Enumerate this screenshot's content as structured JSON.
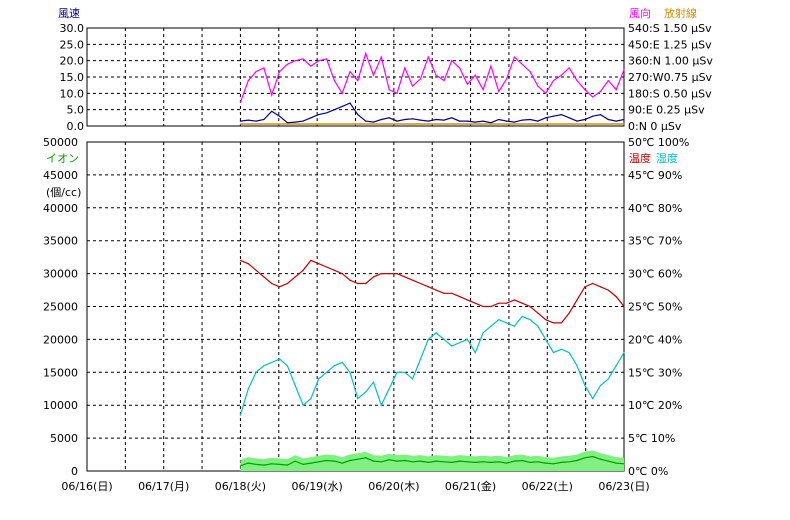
{
  "colors": {
    "wind_speed": "#0000a0",
    "wind_dir": "#ff00ff",
    "radiation": "#d09000",
    "ion": "#00a000",
    "ion_fill": "#80f080",
    "temp": "#c00000",
    "humidity": "#00c0c0",
    "grid": "#000000",
    "label_blue": "#000080"
  },
  "chart_data": [
    {
      "type": "line",
      "title": "",
      "ylabel_left": "風速",
      "ylabel_right": "風向",
      "ylabel_right2": "放射線",
      "ylim": [
        0,
        30
      ],
      "y_ticks": [
        "30.0",
        "25.0",
        "20.0",
        "15.0",
        "10.0",
        "5.0",
        "0.0"
      ],
      "right_ticks": [
        "540:S 1.50 μSv",
        "450:E 1.25 μSv",
        "360:N 1.00 μSv",
        "270:W0.75 μSv",
        "180:S 0.50 μSv",
        "90:E  0.25 μSv",
        "0:N    0 μSv"
      ],
      "data_start_day": 2,
      "series": [
        {
          "name": "風向",
          "unit": "deg",
          "scale_max": 540,
          "values": [
            130,
            250,
            300,
            320,
            170,
            300,
            340,
            360,
            370,
            330,
            360,
            370,
            250,
            180,
            300,
            250,
            400,
            280,
            380,
            200,
            180,
            320,
            220,
            260,
            380,
            280,
            250,
            360,
            320,
            230,
            280,
            200,
            330,
            190,
            260,
            380,
            340,
            300,
            220,
            180,
            250,
            280,
            320,
            250,
            200,
            160,
            190,
            250,
            200,
            310
          ]
        },
        {
          "name": "風速",
          "unit": "m/s",
          "scale_max": 30,
          "values": [
            1.5,
            1.8,
            1.5,
            2.0,
            4.5,
            3.0,
            1.0,
            1.2,
            1.5,
            2.5,
            3.5,
            4.0,
            5.0,
            6.0,
            7.0,
            3.5,
            1.5,
            1.2,
            2.0,
            2.5,
            1.5,
            2.0,
            2.2,
            1.8,
            1.5,
            2.0,
            1.8,
            2.5,
            1.5,
            1.5,
            1.2,
            1.5,
            1.0,
            2.0,
            1.5,
            1.2,
            1.8,
            2.0,
            1.5,
            2.5,
            3.0,
            3.5,
            2.5,
            1.5,
            2.0,
            3.0,
            3.5,
            2.0,
            1.5,
            2.0
          ]
        },
        {
          "name": "放射線",
          "unit": "μSv",
          "scale_max": 1.5,
          "values": [
            0.03,
            0.03,
            0.03,
            0.03,
            0.03,
            0.03,
            0.03,
            0.03,
            0.03,
            0.03
          ]
        }
      ]
    },
    {
      "type": "line",
      "title": "",
      "ylabel_left": "イオン",
      "ylabel_left_unit": "(個/cc)",
      "ylabel_right": "温度",
      "ylabel_right2": "湿度",
      "ylim": [
        0,
        50000
      ],
      "y_ticks": [
        "50000",
        "45000",
        "40000",
        "35000",
        "30000",
        "25000",
        "20000",
        "15000",
        "10000",
        "5000",
        "0"
      ],
      "right_ticks": [
        "50℃ 100%",
        "45℃  90%",
        "40℃  80%",
        "35℃  70%",
        "30℃  60%",
        "25℃  50%",
        "20℃  40%",
        "15℃  30%",
        "10℃  20%",
        "5℃  10%",
        "0℃   0%"
      ],
      "x_ticks": [
        "06/16(日)",
        "06/17(月)",
        "06/18(火)",
        "06/19(水)",
        "06/20(木)",
        "06/21(金)",
        "06/22(土)",
        "06/23(日)"
      ],
      "data_start_day": 2,
      "series": [
        {
          "name": "温度",
          "unit": "℃",
          "scale_max": 50,
          "values": [
            32.0,
            31.5,
            30.5,
            29.5,
            28.5,
            28.0,
            28.5,
            29.5,
            30.5,
            32.0,
            31.5,
            31.0,
            30.5,
            30.0,
            29.0,
            28.5,
            28.5,
            29.5,
            30.0,
            30.0,
            30.0,
            29.5,
            29.0,
            28.5,
            28.0,
            27.5,
            27.0,
            27.0,
            26.5,
            26.0,
            25.5,
            25.0,
            25.0,
            25.5,
            25.5,
            26.0,
            25.5,
            25.0,
            24.0,
            23.0,
            22.5,
            22.5,
            24.0,
            26.0,
            28.0,
            28.5,
            28.0,
            27.5,
            26.5,
            25.0
          ]
        },
        {
          "name": "湿度",
          "unit": "%",
          "scale_max": 100,
          "values": [
            17,
            25,
            30,
            32,
            33,
            34,
            32,
            26,
            20,
            22,
            28,
            30,
            32,
            33,
            30,
            22,
            24,
            27,
            20,
            25,
            30,
            30,
            28,
            34,
            40,
            42,
            40,
            38,
            39,
            40,
            36,
            42,
            44,
            46,
            45,
            44,
            47,
            46,
            44,
            40,
            36,
            37,
            36,
            32,
            26,
            22,
            26,
            28,
            32,
            36
          ]
        },
        {
          "name": "イオン",
          "unit": "個/cc",
          "scale_max": 50000,
          "values": [
            800,
            1200,
            1000,
            900,
            1100,
            1000,
            900,
            1500,
            1000,
            1200,
            1400,
            1600,
            1500,
            1200,
            1600,
            1800,
            2000,
            1500,
            1400,
            1700,
            1500,
            1600,
            1400,
            1500,
            1300,
            1500,
            1400,
            1300,
            1500,
            1400,
            1300,
            1400,
            1300,
            1400,
            1200,
            1500,
            1600,
            1300,
            1400,
            1200,
            1100,
            1300,
            1400,
            1600,
            2000,
            2200,
            1800,
            1500,
            1200,
            1100
          ]
        }
      ]
    }
  ]
}
